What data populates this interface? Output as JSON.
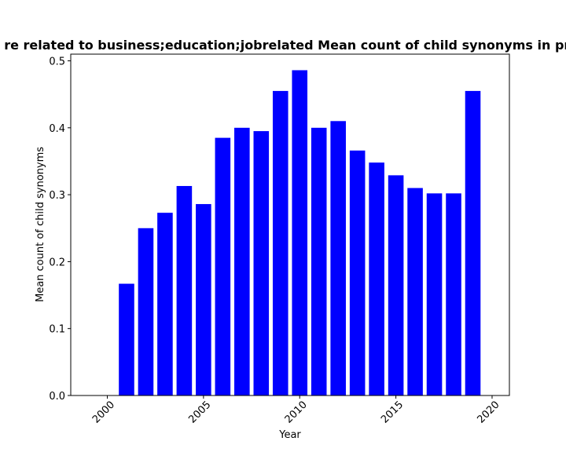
{
  "chart_data": {
    "type": "bar",
    "title": "re related to business;education;jobrelated Mean count of child synonyms in pri",
    "xlabel": "Year",
    "ylabel": "Mean count of child synonyms",
    "x": [
      2001,
      2002,
      2003,
      2004,
      2005,
      2006,
      2007,
      2008,
      2009,
      2010,
      2011,
      2012,
      2013,
      2014,
      2015,
      2016,
      2017,
      2018,
      2019
    ],
    "values": [
      0.167,
      0.25,
      0.273,
      0.313,
      0.286,
      0.385,
      0.4,
      0.395,
      0.455,
      0.486,
      0.4,
      0.41,
      0.366,
      0.348,
      0.329,
      0.31,
      0.302,
      0.302,
      0.455
    ],
    "xlim": [
      1998.1,
      2020.9
    ],
    "ylim": [
      0,
      0.51
    ],
    "xticks": [
      "2000",
      "2005",
      "2010",
      "2015",
      "2020"
    ],
    "yticks": [
      "0.0",
      "0.1",
      "0.2",
      "0.3",
      "0.4",
      "0.5"
    ],
    "bar_color": "#0000ff",
    "grid": false,
    "legend": null
  }
}
